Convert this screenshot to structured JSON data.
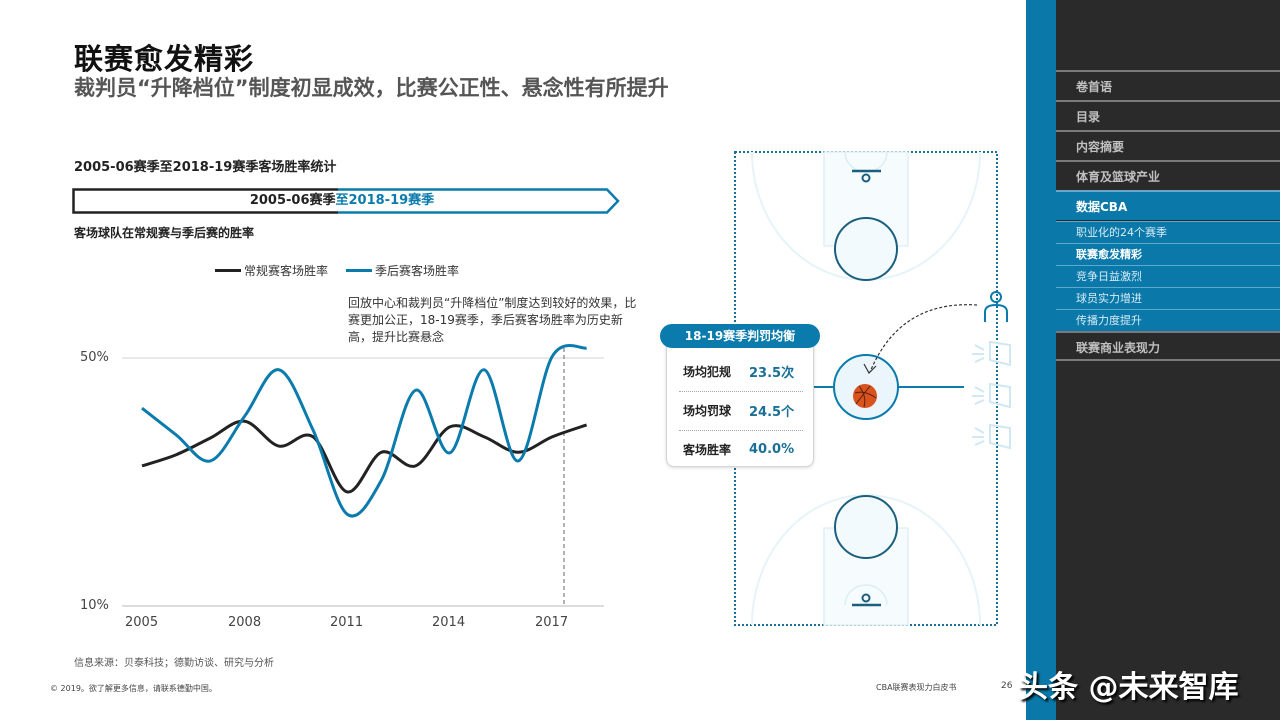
{
  "header": {
    "title": "联赛愈发精彩",
    "subtitle": "裁判员“升降档位”制度初显成效，比赛公正性、悬念性有所提升"
  },
  "chart_section": {
    "title": "2005-06赛季至2018-19赛季客场胜率统计",
    "banner_part1": "2005-06赛季",
    "banner_part2": "至2018-19赛季",
    "subtitle": "客场球队在常规赛与季后赛的胜率",
    "annotation": "回放中心和裁判员“升降档位”制度达到较好的效果，比赛更加公正，18-19赛季，季后赛客场胜率为历史新高，提升比赛悬念",
    "legend": [
      {
        "label": "常规赛客场胜率",
        "color": "#222222"
      },
      {
        "label": "季后赛客场胜率",
        "color": "#0a7bac"
      }
    ],
    "y_ticks": [
      "50%",
      "10%"
    ],
    "x_ticks": [
      "2005",
      "2008",
      "2011",
      "2014",
      "2017"
    ]
  },
  "chart_data": {
    "type": "line",
    "title": "2005-06赛季至2018-19赛季客场胜率统计",
    "subtitle": "客场球队在常规赛与季后赛的胜率",
    "xlabel": "",
    "ylabel": "",
    "x": [
      2005,
      2006,
      2007,
      2008,
      2009,
      2010,
      2011,
      2012,
      2013,
      2014,
      2015,
      2016,
      2017,
      2018
    ],
    "series": [
      {
        "name": "常规赛客场胜率",
        "color": "#222222",
        "values": [
          32.6,
          34.4,
          37.1,
          39.8,
          35.8,
          37.3,
          28.4,
          34.8,
          32.6,
          38.9,
          37.3,
          34.8,
          37.3,
          39.2
        ]
      },
      {
        "name": "季后赛客场胜率",
        "color": "#0a7bac",
        "values": [
          41.9,
          37.6,
          33.4,
          40.6,
          48.1,
          38.4,
          24.8,
          30.3,
          44.8,
          34.7,
          48.1,
          33.4,
          50.3,
          51.6
        ]
      }
    ],
    "x_tick_labels": [
      "2005",
      "2008",
      "2011",
      "2014",
      "2017"
    ],
    "y_tick_labels": [
      "10%",
      "50%"
    ],
    "ylim": [
      10,
      50
    ],
    "grid": "horizontal at 50%",
    "legend_position": "top",
    "annotations": [
      "dashed vertical line at 2017-18 season",
      "回放中心和裁判员“升降档位”制度达到较好的效果，比赛更加公正，18-19赛季，季后赛客场胜率为历史新高，提升比赛悬念"
    ]
  },
  "stats_card": {
    "header": "18-19赛季判罚均衡",
    "rows": [
      {
        "label": "场均犯规",
        "value": "23.5次"
      },
      {
        "label": "场均罚球",
        "value": "24.5个"
      },
      {
        "label": "客场胜率",
        "value": "40.0%"
      }
    ]
  },
  "footer": {
    "source": "信息来源：贝泰科技；德勤访谈、研究与分析",
    "copyright": "© 2019。欲了解更多信息，请联系德勤中国。",
    "doc_title": "CBA联赛表现力白皮书",
    "page": "26"
  },
  "sidebar": {
    "items": [
      {
        "label": "卷首语"
      },
      {
        "label": "目录"
      },
      {
        "label": "内容摘要"
      },
      {
        "label": "体育及篮球产业"
      },
      {
        "label": "数据CBA"
      },
      {
        "label": "联赛商业表现力"
      }
    ],
    "sub_items": [
      {
        "label": "职业化的24个赛季"
      },
      {
        "label": "联赛愈发精彩"
      },
      {
        "label": "竞争日益激烈"
      },
      {
        "label": "球员实力增进"
      },
      {
        "label": "传播力度提升"
      }
    ]
  },
  "watermark": "头条 @未来智库",
  "colors": {
    "accent": "#0a78a9",
    "panel": "#2a2a2a",
    "regular_line": "#222222",
    "playoff_line": "#0a7bac"
  }
}
